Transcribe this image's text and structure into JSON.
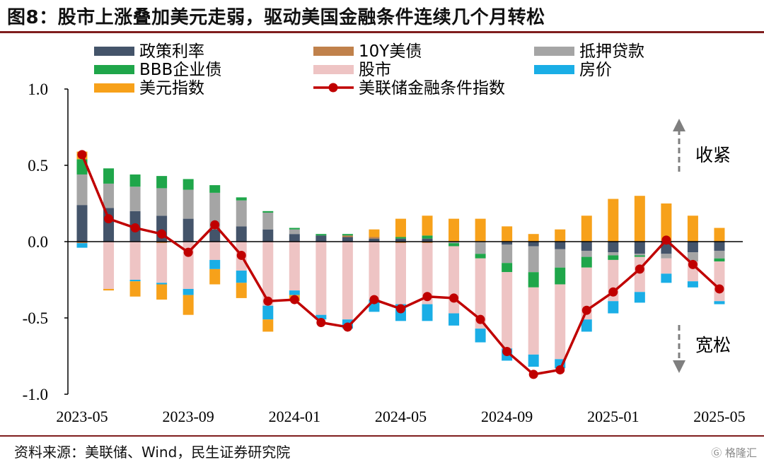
{
  "title": "图8：股市上涨叠加美元走弱，驱动美国金融条件连续几个月转松",
  "source": "资料来源：美联储、Wind，民生证券研究院",
  "watermark": "格隆汇",
  "annotations": {
    "tighten": "收紧",
    "loosen": "宽松"
  },
  "colors": {
    "policy": "#44546a",
    "treasury": "#c0814b",
    "mortgage": "#a5a5a5",
    "bbb": "#1fa64a",
    "equity": "#eec4c4",
    "housing": "#1aaee6",
    "dollar": "#f7a11a",
    "fci": "#c00000",
    "title_rule": "#7f1e1e"
  },
  "chart_data": {
    "type": "bar",
    "stacked": true,
    "ylim": [
      -1.0,
      1.0
    ],
    "yticks": [
      "1.0",
      "0.5",
      "0.0",
      "-0.5",
      "-1.0"
    ],
    "xticks": [
      "2023-05",
      "2023-09",
      "2024-01",
      "2024-05",
      "2024-09",
      "2025-01",
      "2025-05"
    ],
    "categories": [
      "2023-05",
      "2023-06",
      "2023-07",
      "2023-08",
      "2023-09",
      "2023-10",
      "2023-11",
      "2023-12",
      "2024-01",
      "2024-02",
      "2024-03",
      "2024-04",
      "2024-05",
      "2024-06",
      "2024-07",
      "2024-08",
      "2024-09",
      "2024-10",
      "2024-11",
      "2024-12",
      "2025-01",
      "2025-02",
      "2025-03",
      "2025-04",
      "2025-05"
    ],
    "legend": [
      "政策利率",
      "10Y美债",
      "抵押贷款",
      "BBB企业债",
      "股市",
      "房价",
      "美元指数",
      "美联储金融条件指数"
    ],
    "series": [
      {
        "name": "政策利率",
        "key": "policy",
        "values": [
          0.24,
          0.22,
          0.2,
          0.17,
          0.15,
          0.08,
          0.1,
          0.08,
          0.05,
          0.04,
          0.03,
          0.02,
          0.02,
          0.02,
          0.0,
          0.0,
          -0.02,
          -0.03,
          -0.05,
          -0.06,
          -0.07,
          -0.08,
          -0.08,
          -0.07,
          -0.06
        ]
      },
      {
        "name": "10Y美债",
        "key": "treasury",
        "values": [
          -0.01,
          0.0,
          0.0,
          -0.01,
          0.0,
          0.0,
          0.0,
          0.0,
          0.0,
          0.0,
          0.01,
          0.01,
          -0.01,
          -0.01,
          0.0,
          0.0,
          0.0,
          0.0,
          0.0,
          0.0,
          0.0,
          0.0,
          0.0,
          0.0,
          0.0
        ]
      },
      {
        "name": "抵押贷款",
        "key": "mortgage",
        "values": [
          0.2,
          0.16,
          0.16,
          0.18,
          0.19,
          0.24,
          0.17,
          0.11,
          0.03,
          0.0,
          0.0,
          0.0,
          0.0,
          0.0,
          -0.01,
          -0.08,
          -0.12,
          -0.17,
          -0.12,
          -0.04,
          -0.02,
          -0.01,
          -0.03,
          -0.06,
          -0.05
        ]
      },
      {
        "name": "BBB企业债",
        "key": "bbb",
        "values": [
          0.1,
          0.1,
          0.08,
          0.08,
          0.07,
          0.05,
          0.02,
          0.01,
          0.01,
          0.01,
          0.01,
          0.0,
          0.01,
          0.02,
          -0.02,
          -0.03,
          -0.06,
          -0.1,
          -0.11,
          -0.07,
          -0.03,
          -0.01,
          0.0,
          0.0,
          -0.02
        ]
      },
      {
        "name": "股市",
        "key": "equity",
        "values": [
          0.0,
          -0.31,
          -0.25,
          -0.26,
          -0.31,
          -0.12,
          -0.19,
          -0.42,
          -0.32,
          -0.48,
          -0.51,
          -0.38,
          -0.4,
          -0.4,
          -0.44,
          -0.46,
          -0.5,
          -0.44,
          -0.49,
          -0.34,
          -0.27,
          -0.23,
          -0.1,
          -0.13,
          -0.26
        ]
      },
      {
        "name": "房价",
        "key": "housing",
        "values": [
          -0.03,
          0.0,
          -0.01,
          -0.01,
          -0.04,
          -0.06,
          -0.08,
          -0.09,
          -0.03,
          -0.03,
          -0.06,
          -0.08,
          -0.11,
          -0.11,
          -0.08,
          -0.09,
          -0.08,
          -0.08,
          -0.06,
          -0.08,
          -0.08,
          -0.07,
          -0.06,
          -0.04,
          -0.02
        ]
      },
      {
        "name": "美元指数",
        "key": "dollar",
        "values": [
          0.05,
          -0.01,
          -0.1,
          -0.1,
          -0.13,
          -0.1,
          -0.1,
          -0.08,
          -0.04,
          0.0,
          0.0,
          0.05,
          0.12,
          0.13,
          0.15,
          0.15,
          0.1,
          0.05,
          0.08,
          0.17,
          0.28,
          0.3,
          0.25,
          0.17,
          0.09
        ]
      },
      {
        "name": "美联储金融条件指数",
        "key": "fci",
        "type": "line",
        "values": [
          0.57,
          0.15,
          0.09,
          0.05,
          -0.07,
          0.11,
          -0.09,
          -0.39,
          -0.38,
          -0.53,
          -0.56,
          -0.38,
          -0.44,
          -0.36,
          -0.37,
          -0.51,
          -0.72,
          -0.87,
          -0.84,
          -0.45,
          -0.33,
          -0.18,
          0.01,
          -0.15,
          -0.31
        ]
      }
    ]
  }
}
